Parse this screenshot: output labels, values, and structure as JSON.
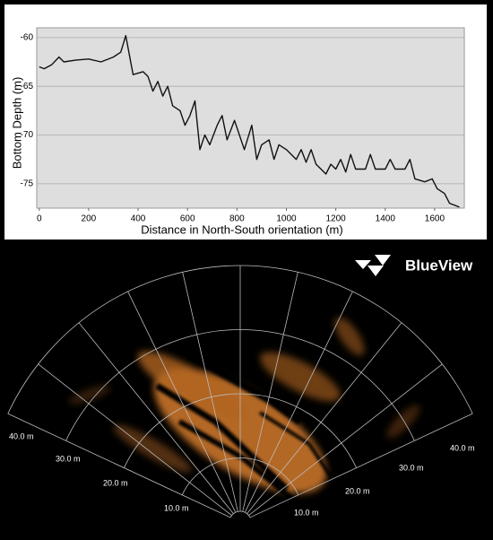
{
  "chart_data": {
    "type": "line",
    "y_label": "Bottom Depth (m)",
    "x_label": "Distance in North-South orientation (m)",
    "x": [
      0,
      20,
      50,
      80,
      100,
      150,
      200,
      250,
      300,
      330,
      350,
      370,
      380,
      420,
      440,
      460,
      480,
      500,
      520,
      540,
      570,
      590,
      610,
      630,
      650,
      670,
      690,
      720,
      740,
      760,
      790,
      810,
      830,
      860,
      880,
      900,
      930,
      950,
      970,
      1000,
      1020,
      1040,
      1060,
      1080,
      1100,
      1120,
      1140,
      1160,
      1180,
      1200,
      1220,
      1240,
      1260,
      1280,
      1320,
      1340,
      1360,
      1400,
      1420,
      1440,
      1480,
      1500,
      1520,
      1560,
      1590,
      1610,
      1640,
      1660,
      1700
    ],
    "values": [
      -63.0,
      -63.2,
      -62.8,
      -62.0,
      -62.5,
      -62.3,
      -62.2,
      -62.5,
      -62.0,
      -61.5,
      -59.8,
      -62.5,
      -63.8,
      -63.5,
      -64.0,
      -65.5,
      -64.5,
      -66.0,
      -65.0,
      -67.0,
      -67.5,
      -69.0,
      -68.0,
      -66.5,
      -71.5,
      -70.0,
      -71.0,
      -69.0,
      -68.0,
      -70.5,
      -68.5,
      -70.0,
      -71.5,
      -69.0,
      -72.5,
      -71.0,
      -70.5,
      -72.5,
      -71.0,
      -71.5,
      -72.0,
      -72.5,
      -71.5,
      -72.8,
      -71.5,
      -73.0,
      -73.5,
      -74.0,
      -73.0,
      -73.5,
      -72.5,
      -73.8,
      -72.0,
      -73.5,
      -73.5,
      -72.0,
      -73.5,
      -73.5,
      -72.5,
      -73.5,
      -73.5,
      -72.5,
      -74.5,
      -74.8,
      -74.5,
      -75.5,
      -76.0,
      -77.0,
      -77.4
    ],
    "color": "#111111",
    "xlim": [
      -10,
      1720
    ],
    "ylim": [
      -77.5,
      -59
    ],
    "xticks": [
      0,
      200,
      400,
      600,
      800,
      1000,
      1200,
      1400,
      1600
    ],
    "yticks": [
      -60,
      -65,
      -70,
      -75
    ],
    "grid": true
  },
  "sonar": {
    "logo": "BlueView",
    "range_labels_left": [
      "40.0 m",
      "30.0 m",
      "20.0 m",
      "10.0 m"
    ],
    "range_labels_right": [
      "10.0 m",
      "20.0 m",
      "30.0 m",
      "40.0 m"
    ]
  }
}
